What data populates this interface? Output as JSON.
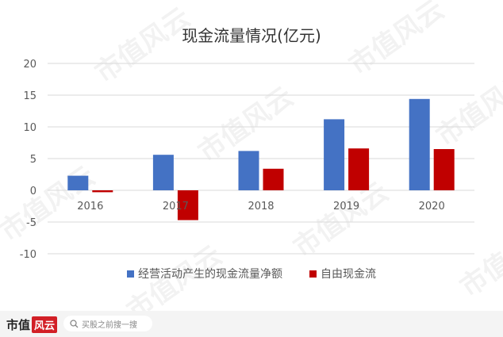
{
  "chart_data": {
    "type": "bar",
    "title": "现金流量情况(亿元)",
    "categories": [
      "2016",
      "2017",
      "2018",
      "2019",
      "2020"
    ],
    "series": [
      {
        "name": "经营活动产生的现金流量净额",
        "color": "#4472c4",
        "values": [
          2.3,
          5.6,
          6.2,
          11.2,
          14.4
        ]
      },
      {
        "name": "自由现金流",
        "color": "#c00000",
        "values": [
          -0.3,
          -4.7,
          3.4,
          6.6,
          6.5
        ]
      }
    ],
    "ylim": [
      -10,
      20
    ],
    "yticks": [
      "20",
      "15",
      "10",
      "5",
      "0",
      "-5",
      "-10"
    ],
    "ytick_values": [
      20,
      15,
      10,
      5,
      0,
      -5,
      -10
    ],
    "grid": true,
    "legend_position": "bottom"
  },
  "watermark_text": "市值风云",
  "footer": {
    "logo_text": "市值",
    "logo_badge": "风云",
    "search_placeholder": "买股之前搜一搜"
  }
}
